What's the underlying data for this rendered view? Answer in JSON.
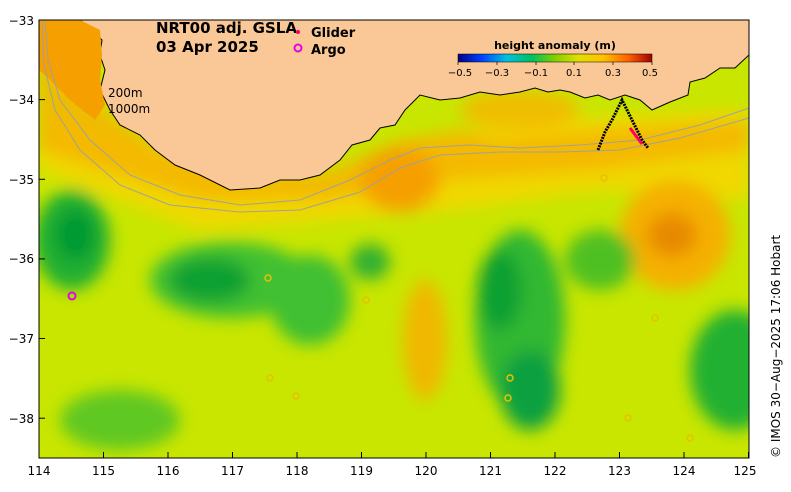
{
  "map": {
    "title_line1": "NRT00 adj. GSLA",
    "title_line2": "03 Apr 2025",
    "legend": {
      "glider_label": "Glider",
      "argo_label": "Argo",
      "glider_color": "#ff0066",
      "argo_color": "#e600e6"
    },
    "colorbar": {
      "label": "height anomaly (m)",
      "ticks": [
        "−0.5",
        "−0.3",
        "−0.1",
        "0.1",
        "0.3",
        "0.5"
      ]
    },
    "isobaths": [
      "200m",
      "1000m"
    ],
    "x_ticks": [
      "114",
      "115",
      "116",
      "117",
      "118",
      "119",
      "120",
      "121",
      "122",
      "123",
      "124",
      "125"
    ],
    "y_ticks": [
      "−33",
      "−34",
      "−35",
      "−36",
      "−37",
      "−38"
    ],
    "credit": "© IMOS 30−Aug−2025 17:06 Hobart",
    "colors": {
      "land": "#fac896",
      "ocean_base": "#c8e600",
      "isobath": "#a0a0a0"
    }
  }
}
